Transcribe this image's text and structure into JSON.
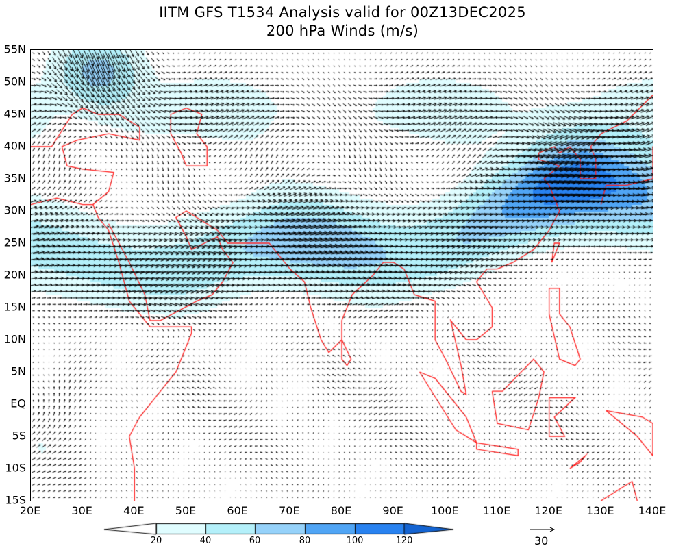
{
  "title": "IITM GFS T1534 Analysis valid for 00Z13DEC2025",
  "subtitle": "200 hPa Winds (m/s)",
  "map": {
    "variable": "200 hPa wind speed and vectors",
    "lon_range": [
      20,
      140
    ],
    "lat_range": [
      -15,
      55
    ],
    "coastline_color": "#ff2020",
    "vector_color": "#000000"
  },
  "lat_labels": [
    "55N",
    "50N",
    "45N",
    "40N",
    "35N",
    "30N",
    "25N",
    "20N",
    "15N",
    "10N",
    "5N",
    "EQ",
    "5S",
    "10S",
    "15S"
  ],
  "lon_labels": [
    "20E",
    "30E",
    "40E",
    "50E",
    "60E",
    "70E",
    "80E",
    "90E",
    "100E",
    "110E",
    "120E",
    "130E",
    "140E"
  ],
  "colorbar": {
    "levels": [
      "20",
      "40",
      "60",
      "80",
      "100",
      "120"
    ],
    "colors": [
      "#ffffff",
      "#e0fdff",
      "#b4f0fa",
      "#96d2fa",
      "#50a5f5",
      "#2882f0",
      "#1464d2"
    ]
  },
  "reference_vector": {
    "label": "30",
    "units": "m/s"
  }
}
